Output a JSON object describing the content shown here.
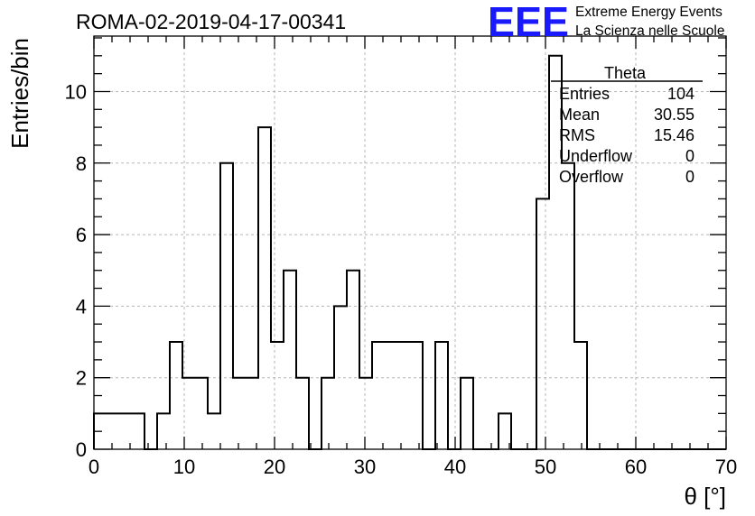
{
  "chart_data": {
    "type": "histogram",
    "title": "ROMA-02-2019-04-17-00341",
    "xlabel": "θ [°]",
    "ylabel": "Entries/bin",
    "xlim": [
      0,
      70
    ],
    "ylim": [
      0,
      11.55
    ],
    "x_ticks": [
      0,
      10,
      20,
      30,
      40,
      50,
      60,
      70
    ],
    "y_ticks": [
      0,
      2,
      4,
      6,
      8,
      10
    ],
    "grid": true,
    "bin_width": 1.4,
    "bin_contents": [
      1,
      1,
      1,
      1,
      0,
      1,
      3,
      2,
      2,
      1,
      8,
      2,
      2,
      9,
      3,
      5,
      2,
      0,
      2,
      4,
      5,
      2,
      3,
      3,
      3,
      3,
      0,
      3,
      0,
      2,
      0,
      0,
      1,
      0,
      0,
      7,
      11,
      8,
      3,
      0,
      0,
      0,
      0,
      0,
      0,
      0,
      0,
      0,
      0,
      0
    ],
    "stats_box": {
      "title": "Theta",
      "rows": [
        {
          "label": "Entries",
          "value": "104"
        },
        {
          "label": "Mean",
          "value": "30.55"
        },
        {
          "label": "RMS",
          "value": "15.46"
        },
        {
          "label": "Underflow",
          "value": "0"
        },
        {
          "label": "Overflow",
          "value": "0"
        }
      ]
    }
  },
  "logo": {
    "mark": "EEE",
    "line1": "Extreme Energy Events",
    "line2": "La Scienza nelle Scuole",
    "color": "#1a1aff"
  }
}
